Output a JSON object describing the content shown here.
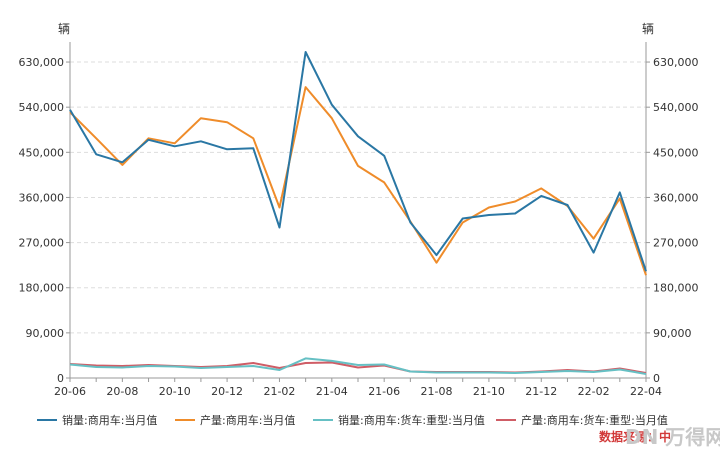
{
  "chart_data": {
    "type": "line",
    "yunit_left": "辆",
    "yunit_right": "辆",
    "ylim": [
      0,
      660000
    ],
    "yticks": [
      0,
      90000,
      180000,
      270000,
      360000,
      450000,
      540000,
      630000
    ],
    "ytick_labels": [
      "0",
      "90,000",
      "180,000",
      "270,000",
      "360,000",
      "450,000",
      "540,000",
      "630,000"
    ],
    "x": [
      "20-06",
      "20-07",
      "20-08",
      "20-09",
      "20-10",
      "20-11",
      "20-12",
      "21-01",
      "21-02",
      "21-03",
      "21-04",
      "21-05",
      "21-06",
      "21-07",
      "21-08",
      "21-09",
      "21-10",
      "21-11",
      "21-12",
      "22-01",
      "22-02",
      "22-03",
      "22-04"
    ],
    "xtick_labels": [
      "20-06",
      "20-08",
      "20-10",
      "20-12",
      "21-02",
      "21-04",
      "21-06",
      "21-08",
      "21-10",
      "21-12",
      "22-02",
      "22-04"
    ],
    "grid": true,
    "legend_position": "bottom",
    "series": [
      {
        "name": "销量:商用车:当月值",
        "color": "#2a77a4",
        "values": [
          535000,
          446000,
          430000,
          475000,
          462000,
          472000,
          456000,
          458000,
          300000,
          650000,
          545000,
          482000,
          443000,
          310000,
          245000,
          318000,
          325000,
          328000,
          363000,
          345000,
          250000,
          370000,
          213000
        ]
      },
      {
        "name": "产量:商用车:当月值",
        "color": "#ef8c2a",
        "values": [
          530000,
          478000,
          425000,
          478000,
          468000,
          518000,
          510000,
          478000,
          340000,
          580000,
          518000,
          423000,
          390000,
          312000,
          230000,
          310000,
          340000,
          352000,
          378000,
          343000,
          278000,
          358000,
          205000
        ]
      },
      {
        "name": "销量:商用车:货车:重型:当月值",
        "color": "#66c0c4",
        "values": [
          27000,
          22000,
          21000,
          24000,
          23000,
          20000,
          22000,
          24000,
          16000,
          39000,
          34000,
          26000,
          27000,
          13000,
          11000,
          11000,
          11000,
          10000,
          12000,
          14000,
          12000,
          17000,
          8000
        ]
      },
      {
        "name": "产量:商用车:货车:重型:当月值",
        "color": "#cf5d66",
        "values": [
          28000,
          25000,
          24000,
          26000,
          24000,
          22000,
          24000,
          30000,
          20000,
          30000,
          31000,
          21000,
          25000,
          13000,
          12000,
          12000,
          12000,
          11000,
          13000,
          16000,
          13000,
          19000,
          10000
        ]
      }
    ],
    "source_text": "数据来源：中"
  },
  "watermark": "DN  万得网"
}
